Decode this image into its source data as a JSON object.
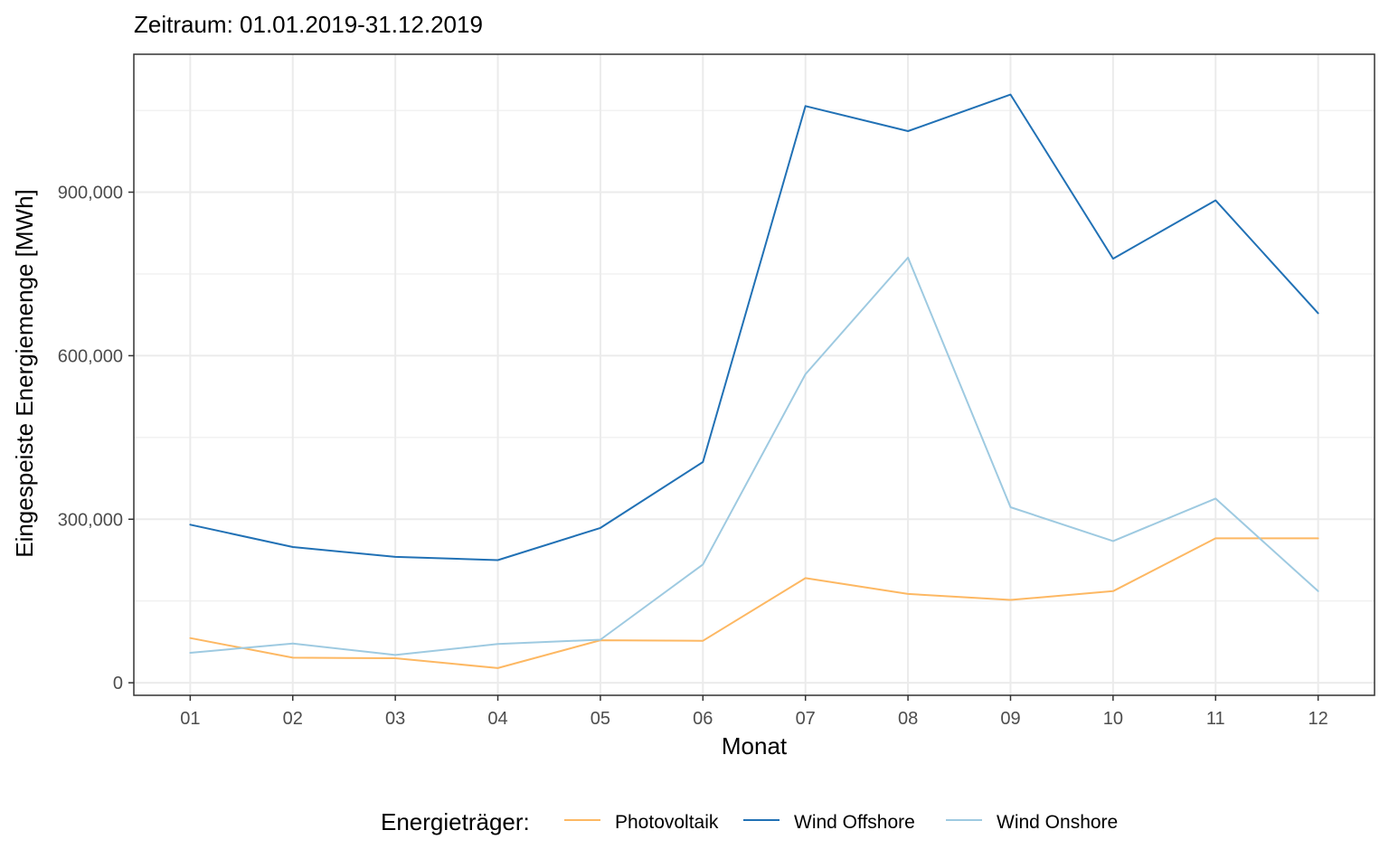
{
  "chart_data": {
    "type": "line",
    "title": "Zeitraum: 01.01.2019-31.12.2019",
    "xlabel": "Monat",
    "ylabel": "Eingespeiste Energiemenge [MWh]",
    "categories": [
      "01",
      "02",
      "03",
      "04",
      "05",
      "06",
      "07",
      "08",
      "09",
      "10",
      "11",
      "12"
    ],
    "ylim": [
      -23000,
      1153000
    ],
    "yticks": [
      0,
      300000,
      600000,
      900000
    ],
    "ytick_labels": [
      "0",
      "300,000",
      "600,000",
      "900,000"
    ],
    "grid": true,
    "legend": {
      "title": "Energieträger:",
      "position": "bottom"
    },
    "series": [
      {
        "name": "Photovoltaik",
        "color": "#fdb863",
        "values": [
          82000,
          46000,
          45000,
          27000,
          78000,
          77000,
          192000,
          163000,
          152000,
          168000,
          265000,
          265000
        ]
      },
      {
        "name": "Wind Offshore",
        "color": "#2171b5",
        "values": [
          290000,
          249000,
          231000,
          225000,
          284000,
          405000,
          1058000,
          1012000,
          1079000,
          778000,
          885000,
          678000
        ]
      },
      {
        "name": "Wind Onshore",
        "color": "#9ecae1",
        "values": [
          55000,
          72000,
          51000,
          71000,
          79000,
          217000,
          566000,
          780000,
          322000,
          260000,
          338000,
          168000
        ]
      }
    ]
  }
}
